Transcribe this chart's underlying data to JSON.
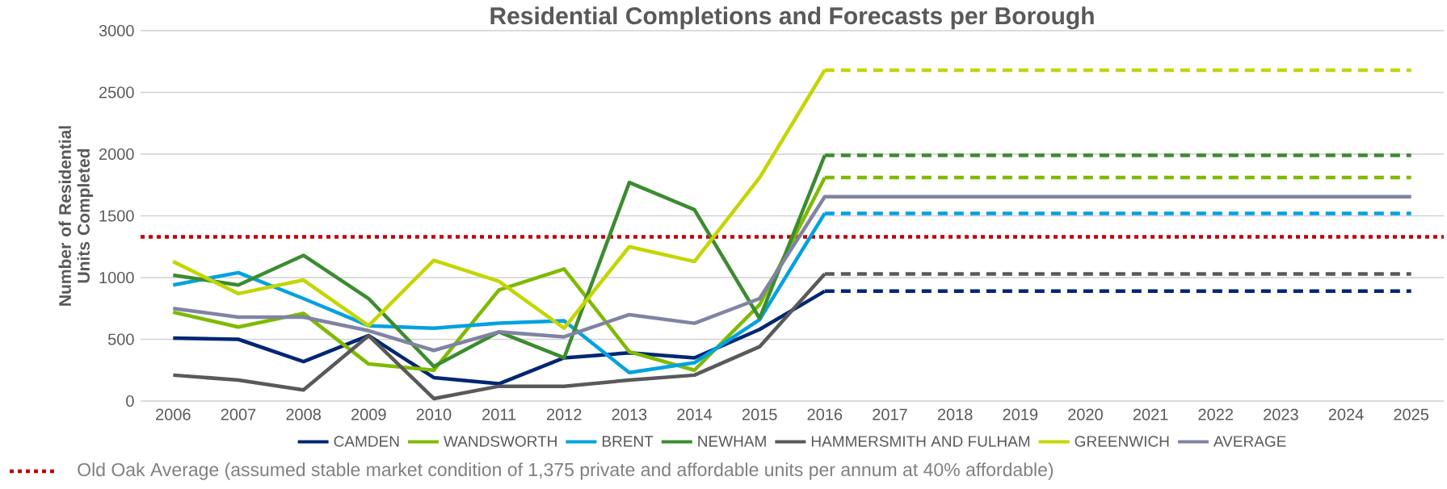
{
  "chart_data": {
    "type": "line",
    "title": "Residential Completions and Forecasts per Borough",
    "ylabel": "Number of Residential Units Completed",
    "categories": [
      "2006",
      "2007",
      "2008",
      "2009",
      "2010",
      "2011",
      "2012",
      "2013",
      "2014",
      "2015",
      "2016",
      "2017",
      "2018",
      "2019",
      "2020",
      "2021",
      "2022",
      "2023",
      "2024",
      "2025"
    ],
    "ylim": [
      0,
      3000
    ],
    "yticks": [
      0,
      500,
      1000,
      1500,
      2000,
      2500,
      3000
    ],
    "grid": "y",
    "legend": "bottom",
    "ref_lines": [
      {
        "axis": "y",
        "value": 1330,
        "label": "Old Oak Average (assumed stable market condition of 1,375 private and affordable units per annum at 40% affordable)",
        "color": "#c00000",
        "line_style": "dotted"
      }
    ],
    "series": [
      {
        "name": "CAMDEN",
        "color": "#002673",
        "line_style": "solid",
        "values": [
          510,
          500,
          320,
          530,
          190,
          140,
          350,
          390,
          350,
          580,
          890,
          null,
          null,
          null,
          null,
          null,
          null,
          null,
          null,
          null
        ]
      },
      {
        "name": "WANDSWORTH",
        "color": "#7fba00",
        "line_style": "solid",
        "values": [
          720,
          600,
          710,
          300,
          250,
          900,
          1070,
          400,
          250,
          780,
          1810,
          null,
          null,
          null,
          null,
          null,
          null,
          null,
          null,
          null
        ]
      },
      {
        "name": "BRENT",
        "color": "#00a2e0",
        "line_style": "solid",
        "values": [
          940,
          1040,
          830,
          610,
          590,
          630,
          650,
          230,
          310,
          660,
          1520,
          null,
          null,
          null,
          null,
          null,
          null,
          null,
          null,
          null
        ]
      },
      {
        "name": "NEWHAM",
        "color": "#3b8c2f",
        "line_style": "solid",
        "values": [
          1020,
          940,
          1180,
          830,
          280,
          560,
          350,
          1770,
          1550,
          670,
          1990,
          null,
          null,
          null,
          null,
          null,
          null,
          null,
          null,
          null
        ]
      },
      {
        "name": "HAMMERSMITH AND FULHAM",
        "color": "#595959",
        "line_style": "solid",
        "values": [
          210,
          170,
          90,
          530,
          20,
          120,
          120,
          170,
          210,
          440,
          1030,
          null,
          null,
          null,
          null,
          null,
          null,
          null,
          null,
          null
        ]
      },
      {
        "name": "GREENWICH",
        "color": "#c3d600",
        "line_style": "solid",
        "values": [
          1130,
          870,
          980,
          610,
          1140,
          970,
          590,
          1250,
          1130,
          1810,
          2680,
          null,
          null,
          null,
          null,
          null,
          null,
          null,
          null,
          null
        ]
      },
      {
        "name": "AVERAGE",
        "color": "#8083a3",
        "line_style": "solid",
        "values": [
          750,
          680,
          680,
          570,
          410,
          560,
          520,
          700,
          630,
          830,
          1655,
          1655,
          1655,
          1655,
          1655,
          1655,
          1655,
          1655,
          1655,
          1655
        ]
      },
      {
        "color": "#002673",
        "line_style": "dashed",
        "values": [
          null,
          null,
          null,
          null,
          null,
          null,
          null,
          null,
          null,
          null,
          890,
          890,
          890,
          890,
          890,
          890,
          890,
          890,
          890,
          890
        ]
      },
      {
        "color": "#7fba00",
        "line_style": "dashed",
        "values": [
          null,
          null,
          null,
          null,
          null,
          null,
          null,
          null,
          null,
          null,
          1810,
          1810,
          1810,
          1810,
          1810,
          1810,
          1810,
          1810,
          1810,
          1810
        ]
      },
      {
        "color": "#00a2e0",
        "line_style": "dashed",
        "values": [
          null,
          null,
          null,
          null,
          null,
          null,
          null,
          null,
          null,
          null,
          1520,
          1520,
          1520,
          1520,
          1520,
          1520,
          1520,
          1520,
          1520,
          1520
        ]
      },
      {
        "color": "#3b8c2f",
        "line_style": "dashed",
        "values": [
          null,
          null,
          null,
          null,
          null,
          null,
          null,
          null,
          null,
          null,
          1990,
          1990,
          1990,
          1990,
          1990,
          1990,
          1990,
          1990,
          1990,
          1990
        ]
      },
      {
        "color": "#595959",
        "line_style": "dashed",
        "values": [
          null,
          null,
          null,
          null,
          null,
          null,
          null,
          null,
          null,
          null,
          1030,
          1030,
          1030,
          1030,
          1030,
          1030,
          1030,
          1030,
          1030,
          1030
        ]
      },
      {
        "color": "#c3d600",
        "line_style": "dashed",
        "values": [
          null,
          null,
          null,
          null,
          null,
          null,
          null,
          null,
          null,
          null,
          2680,
          2680,
          2680,
          2680,
          2680,
          2680,
          2680,
          2680,
          2680,
          2680
        ]
      }
    ]
  }
}
